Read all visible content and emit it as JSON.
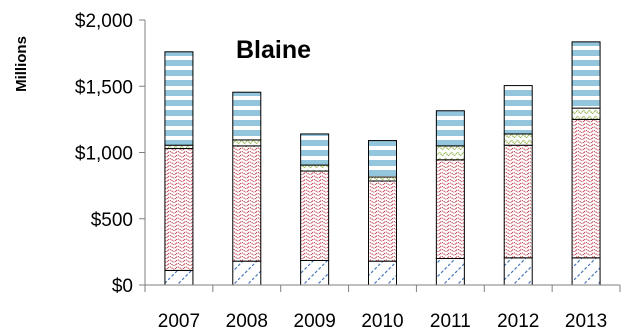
{
  "chart_data": {
    "type": "bar",
    "stacked": true,
    "title": "Blaine",
    "ylabel": "Millions",
    "xlabel": "",
    "categories": [
      "2007",
      "2008",
      "2009",
      "2010",
      "2011",
      "2012",
      "2013"
    ],
    "ylim": [
      0,
      2000
    ],
    "yticks": [
      0,
      500,
      1000,
      1500,
      2000
    ],
    "ytick_labels": [
      "$0",
      "$500",
      "$1,000",
      "$1,500",
      "$2,000"
    ],
    "grid": false,
    "legend": "none",
    "series": [
      {
        "values": [
          110,
          180,
          185,
          180,
          200,
          205,
          205
        ],
        "pattern": "diagonal-hatch",
        "color": "#4a78b8"
      },
      {
        "values": [
          920,
          870,
          675,
          605,
          745,
          850,
          1045
        ],
        "pattern": "dotted-wave",
        "color": "#c0404a"
      },
      {
        "values": [
          25,
          45,
          45,
          30,
          105,
          85,
          85
        ],
        "pattern": "dotted-green",
        "color": "#9bbb59"
      },
      {
        "values": [
          705,
          360,
          235,
          275,
          265,
          365,
          500
        ],
        "pattern": "horizontal-stripes",
        "color": "#93c6dc"
      }
    ]
  }
}
